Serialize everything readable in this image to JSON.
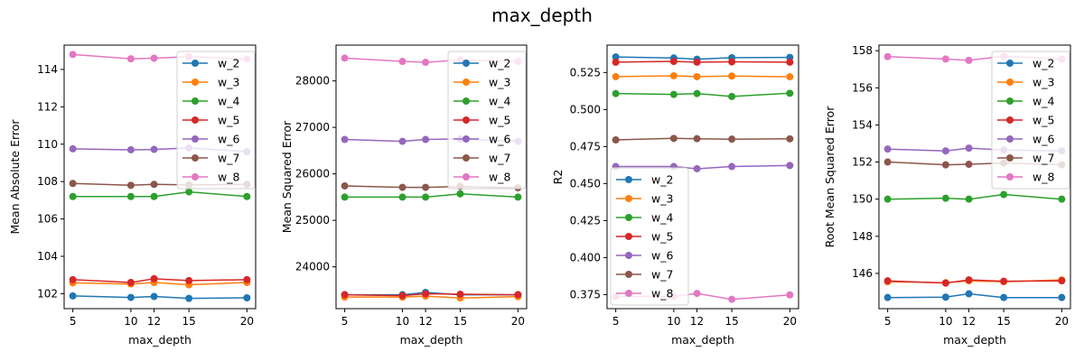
{
  "figure": {
    "title": "max_depth"
  },
  "colors": {
    "w_2": "#1f77b4",
    "w_3": "#ff7f0e",
    "w_4": "#2ca02c",
    "w_5": "#d62728",
    "w_6": "#9467bd",
    "w_7": "#8c564b",
    "w_8": "#e377c2"
  },
  "chart_data": [
    {
      "type": "line",
      "xlabel": "max_depth",
      "ylabel": "Mean Absolute Error",
      "x": [
        5,
        10,
        12,
        15,
        20
      ],
      "xticks": [
        5,
        10,
        12,
        15,
        20
      ],
      "xlim": [
        4.25,
        20.75
      ],
      "yticks": [
        102,
        104,
        106,
        108,
        110,
        112,
        114
      ],
      "ytick_labels": [
        "102",
        "104",
        "106",
        "108",
        "110",
        "112",
        "114"
      ],
      "ylim": [
        101.2,
        115.3
      ],
      "legend": "upper right",
      "grid": false,
      "series": [
        {
          "name": "w_2",
          "values": [
            101.88,
            101.8,
            101.85,
            101.75,
            101.78
          ]
        },
        {
          "name": "w_3",
          "values": [
            102.58,
            102.52,
            102.6,
            102.48,
            102.6
          ]
        },
        {
          "name": "w_4",
          "values": [
            107.2,
            107.2,
            107.2,
            107.45,
            107.2
          ]
        },
        {
          "name": "w_5",
          "values": [
            102.75,
            102.6,
            102.8,
            102.7,
            102.75
          ]
        },
        {
          "name": "w_6",
          "values": [
            109.75,
            109.7,
            109.72,
            109.8,
            109.6
          ]
        },
        {
          "name": "w_7",
          "values": [
            107.9,
            107.8,
            107.85,
            107.82,
            107.85
          ]
        },
        {
          "name": "w_8",
          "values": [
            114.8,
            114.57,
            114.6,
            114.68,
            114.55
          ]
        }
      ]
    },
    {
      "type": "line",
      "xlabel": "max_depth",
      "ylabel": "Mean Squared Error",
      "x": [
        5,
        10,
        12,
        15,
        20
      ],
      "xticks": [
        5,
        10,
        12,
        15,
        20
      ],
      "xlim": [
        4.25,
        20.75
      ],
      "yticks": [
        24000,
        25000,
        26000,
        27000,
        28000
      ],
      "ytick_labels": [
        "24000",
        "25000",
        "26000",
        "27000",
        "28000"
      ],
      "ylim": [
        23100,
        28770
      ],
      "legend": "upper right",
      "grid": false,
      "series": [
        {
          "name": "w_2",
          "values": [
            23400,
            23400,
            23450,
            23400,
            23400
          ]
        },
        {
          "name": "w_3",
          "values": [
            23350,
            23350,
            23370,
            23330,
            23360
          ]
        },
        {
          "name": "w_4",
          "values": [
            25500,
            25500,
            25500,
            25570,
            25500
          ]
        },
        {
          "name": "w_5",
          "values": [
            23400,
            23380,
            23420,
            23410,
            23400
          ]
        },
        {
          "name": "w_6",
          "values": [
            26740,
            26700,
            26740,
            26750,
            26700
          ]
        },
        {
          "name": "w_7",
          "values": [
            25740,
            25710,
            25710,
            25730,
            25700
          ]
        },
        {
          "name": "w_8",
          "values": [
            28490,
            28420,
            28400,
            28450,
            28420
          ]
        }
      ]
    },
    {
      "type": "line",
      "xlabel": "max_depth",
      "ylabel": "R2",
      "x": [
        5,
        10,
        12,
        15,
        20
      ],
      "xticks": [
        5,
        10,
        12,
        15,
        20
      ],
      "xlim": [
        4.25,
        20.75
      ],
      "yticks": [
        0.375,
        0.4,
        0.425,
        0.45,
        0.475,
        0.5,
        0.525
      ],
      "ytick_labels": [
        "0.375",
        "0.400",
        "0.425",
        "0.450",
        "0.475",
        "0.500",
        "0.525"
      ],
      "ylim": [
        0.3655,
        0.5435
      ],
      "legend": "lower left",
      "grid": false,
      "series": [
        {
          "name": "w_2",
          "values": [
            0.5355,
            0.5348,
            0.534,
            0.535,
            0.5352
          ]
        },
        {
          "name": "w_3",
          "values": [
            0.5222,
            0.5228,
            0.5222,
            0.5226,
            0.5221
          ]
        },
        {
          "name": "w_4",
          "values": [
            0.5108,
            0.5102,
            0.5108,
            0.5088,
            0.511
          ]
        },
        {
          "name": "w_5",
          "values": [
            0.532,
            0.5325,
            0.532,
            0.5322,
            0.532
          ]
        },
        {
          "name": "w_6",
          "values": [
            0.4615,
            0.4615,
            0.46,
            0.4615,
            0.4622
          ]
        },
        {
          "name": "w_7",
          "values": [
            0.4795,
            0.4805,
            0.4803,
            0.48,
            0.4802
          ]
        },
        {
          "name": "w_8",
          "values": [
            0.3738,
            0.3738,
            0.3758,
            0.3718,
            0.3748
          ]
        }
      ]
    },
    {
      "type": "line",
      "xlabel": "max_depth",
      "ylabel": "Root Mean Squared Error",
      "x": [
        5,
        10,
        12,
        15,
        20
      ],
      "xticks": [
        5,
        10,
        12,
        15,
        20
      ],
      "xlim": [
        4.25,
        20.75
      ],
      "yticks": [
        146,
        148,
        150,
        152,
        154,
        156,
        158
      ],
      "ytick_labels": [
        "146",
        "148",
        "150",
        "152",
        "154",
        "156",
        "158"
      ],
      "ylim": [
        144.1,
        158.3
      ],
      "legend": "upper right",
      "grid": false,
      "series": [
        {
          "name": "w_2",
          "values": [
            144.7,
            144.72,
            144.9,
            144.7,
            144.7
          ]
        },
        {
          "name": "w_3",
          "values": [
            145.55,
            145.5,
            145.6,
            145.55,
            145.65
          ]
        },
        {
          "name": "w_4",
          "values": [
            150.0,
            150.05,
            150.0,
            150.25,
            150.0
          ]
        },
        {
          "name": "w_5",
          "values": [
            145.6,
            145.48,
            145.65,
            145.58,
            145.6
          ]
        },
        {
          "name": "w_6",
          "values": [
            152.7,
            152.6,
            152.75,
            152.65,
            152.6
          ]
        },
        {
          "name": "w_7",
          "values": [
            152.0,
            151.85,
            151.88,
            151.95,
            151.85
          ]
        },
        {
          "name": "w_8",
          "values": [
            157.68,
            157.55,
            157.48,
            157.7,
            157.55
          ]
        }
      ]
    }
  ]
}
